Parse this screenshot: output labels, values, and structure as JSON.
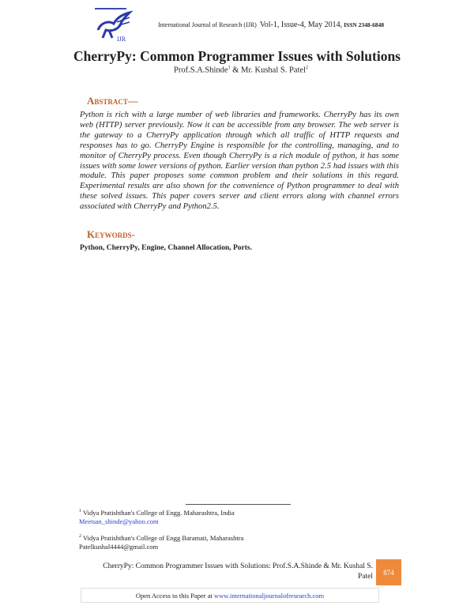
{
  "header": {
    "logo_text": "IJR",
    "journal": "International Journal of Research (IJR)",
    "volume": "Vol-1, Issue-4, May 2014,",
    "issn": "ISSN 2348-6848"
  },
  "title": "CherryPy: Common Programmer Issues with Solutions",
  "authors": {
    "author1": "Prof.S.A.Shinde",
    "sup1": "1",
    "sep": " & ",
    "author2": "Mr. Kushal S. Patel",
    "sup2": "2"
  },
  "abstract": {
    "heading": "Abstract—",
    "text": "Python is rich with a large number of web libraries and frameworks. CherryPy has its own web (HTTP) server previously. Now it can be accessible from any browser. The web server is the gateway to a CherryPy application through which all traffic of HTTP requests and responses has to go. CherryPy Engine is responsible for the controlling, managing, and to monitor of CherryPy process. Even though CherryPy is a rich module of python, it has some issues with some lower versions of python. Earlier version than python 2.5 had issues with this module. This paper proposes some common problem and their solutions in this regard. Experimental results are also shown for the convenience of Python programmer to deal with these solved issues. This paper covers server and client errors along with channel errors associated with CherryPy and Python2.5."
  },
  "keywords": {
    "heading": "Keywords-",
    "text": "Python, CherryPy, Engine, Channel Allocation, Ports."
  },
  "footnotes": [
    {
      "mark": "1",
      "affiliation": "Vidya Pratishthan's College of Engg. Maharashtra, India",
      "email": "Meetsan_shinde@yahoo.com"
    },
    {
      "mark": "2",
      "affiliation": "Vidya Pratishthan's College of Engg Baramati, Maharashtra",
      "email": "Patelkushal4444@gmail.com"
    }
  ],
  "footer": {
    "line1": "CherryPy: Common Programmer Issues with Solutions: Prof.S.A.Shinde & Mr. Kushal S.",
    "line2": "Patel",
    "page_number": "874",
    "open_access": "Open Access to this Paper at ",
    "url": "www.internationaljournalofresearch.com"
  },
  "colors": {
    "heading": "#c0602a",
    "page_box": "#ee8a3c",
    "link": "#2a3fd0"
  }
}
